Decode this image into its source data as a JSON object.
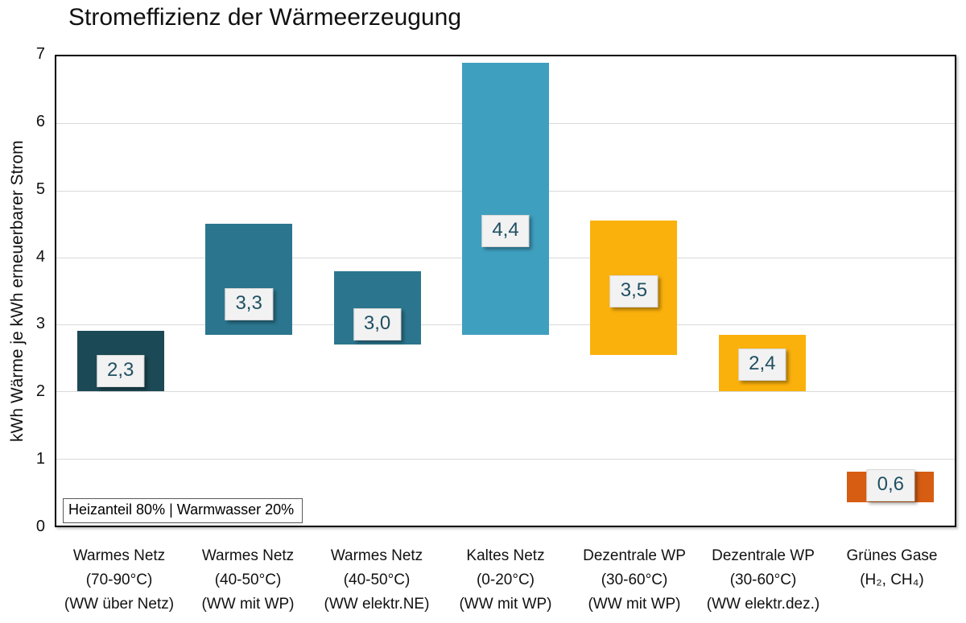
{
  "page": {
    "background": "#ffffff"
  },
  "chart_data": {
    "type": "bar",
    "variant": "floating-range-bars",
    "title": "Stromeffizienz der Wärmeerzeugung",
    "ylabel": "kWh Wärme je kWh erneuerbarer Strom",
    "xlabel": "",
    "ylim": [
      0,
      7
    ],
    "yticks": [
      0,
      1,
      2,
      3,
      4,
      5,
      6,
      7
    ],
    "grid": "horizontal",
    "legend": "none",
    "annotation": "Heizanteil 80% | Warmwasser 20%",
    "bars": [
      {
        "category_lines": [
          "Warmes Netz",
          "(70-90°C)",
          "(WW über Netz)"
        ],
        "range": [
          2.0,
          2.9
        ],
        "label": "2,3",
        "label_value": 2.3,
        "color": "#1c4956"
      },
      {
        "category_lines": [
          "Warmes Netz",
          "(40-50°C)",
          "(WW mit WP)"
        ],
        "range": [
          2.85,
          4.5
        ],
        "label": "3,3",
        "label_value": 3.3,
        "color": "#2b768e"
      },
      {
        "category_lines": [
          "Warmes Netz",
          "(40-50°C)",
          "(WW elektr.NE)"
        ],
        "range": [
          2.7,
          3.8
        ],
        "label": "3,0",
        "label_value": 3.0,
        "color": "#2b768e"
      },
      {
        "category_lines": [
          "Kaltes Netz",
          "(0-20°C)",
          "(WW mit WP)"
        ],
        "range": [
          2.85,
          6.9
        ],
        "label": "4,4",
        "label_value": 4.4,
        "color": "#3f9fbf"
      },
      {
        "category_lines": [
          "Dezentrale WP",
          "(30-60°C)",
          "(WW mit WP)"
        ],
        "range": [
          2.55,
          4.55
        ],
        "label": "3,5",
        "label_value": 3.5,
        "color": "#fbb10c"
      },
      {
        "category_lines": [
          "Dezentrale WP",
          "(30-60°C)",
          "(WW elektr.dez.)"
        ],
        "range": [
          2.0,
          2.85
        ],
        "label": "2,4",
        "label_value": 2.4,
        "color": "#fbb10c"
      },
      {
        "category_lines": [
          "Grünes Gase",
          "(H₂, CH₄)"
        ],
        "range": [
          0.35,
          0.8
        ],
        "label": "0,6",
        "label_value": 0.6,
        "color": "#d65d12"
      }
    ],
    "colors": {
      "gridline": "#d9d9d9",
      "plot_border": "#000000",
      "label_box_bg": "#f2f2f2",
      "label_box_border": "#d8d8d8",
      "label_text": "#1f5062",
      "axis_text": "#111111"
    }
  }
}
